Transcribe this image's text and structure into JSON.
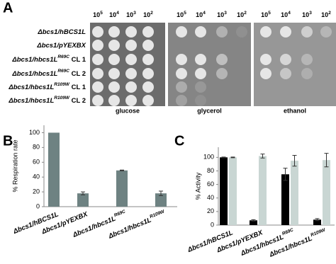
{
  "panel_labels": [
    "A",
    "B",
    "C"
  ],
  "panel_a": {
    "dilutions": [
      {
        "base": "10",
        "exp": "5"
      },
      {
        "base": "10",
        "exp": "4"
      },
      {
        "base": "10",
        "exp": "3"
      },
      {
        "base": "10",
        "exp": "2"
      }
    ],
    "strains": [
      {
        "text": "Δbcs1/hBCS1L"
      },
      {
        "text": "Δbcs1/pYEXBX"
      },
      {
        "text": "Δbcs1/hbcs1L",
        "sup": "R69C",
        "after": " CL 1"
      },
      {
        "text": "Δbcs1/hbcs1L",
        "sup": "R69C",
        "after": " CL 2"
      },
      {
        "text": "Δbcs1/hbcs1L",
        "sup": "R109W",
        "after": " CL 1"
      },
      {
        "text": "Δbcs1/hbcs1L",
        "sup": "R109W",
        "after": " CL 2"
      }
    ],
    "media": [
      "glucose",
      "glycerol",
      "ethanol"
    ]
  },
  "chart_data": [
    {
      "type": "bar",
      "ylabel": "% Respiration rate",
      "categories": [
        {
          "text": "Δbcs1/hBCS1L"
        },
        {
          "text": "Δbcs1/pYEXBX"
        },
        {
          "text": "Δbcs1/hbcs1L",
          "sup": "R69C"
        },
        {
          "text": "Δbcs1/hbcs1L",
          "sup": "R109W"
        }
      ],
      "series": [
        {
          "color": "#6e8282",
          "values": [
            100,
            18,
            49,
            18
          ],
          "errors": [
            null,
            2,
            0.5,
            3
          ]
        }
      ],
      "ylim": [
        0,
        110
      ],
      "yticks": [
        0,
        20,
        40,
        60,
        80,
        100
      ]
    },
    {
      "type": "bar",
      "ylabel": "% Activity",
      "categories": [
        {
          "text": "Δbcs1/hBCS1L"
        },
        {
          "text": "Δbcs1/pYEXBX"
        },
        {
          "text": "Δbcs1/hbcs1L",
          "sup": "R69C"
        },
        {
          "text": "Δbcs1/hbcs1L",
          "sup": "R109W"
        }
      ],
      "series": [
        {
          "color": "#000000",
          "values": [
            100,
            7,
            75,
            8
          ],
          "errors": [
            0.5,
            1,
            9,
            1.5
          ]
        },
        {
          "color": "#c9d6d3",
          "values": [
            100,
            102,
            95,
            96
          ],
          "errors": [
            0.5,
            3,
            8,
            10
          ]
        }
      ],
      "ylim": [
        0,
        115
      ],
      "yticks": [
        0,
        20,
        40,
        60,
        80,
        100
      ]
    }
  ]
}
